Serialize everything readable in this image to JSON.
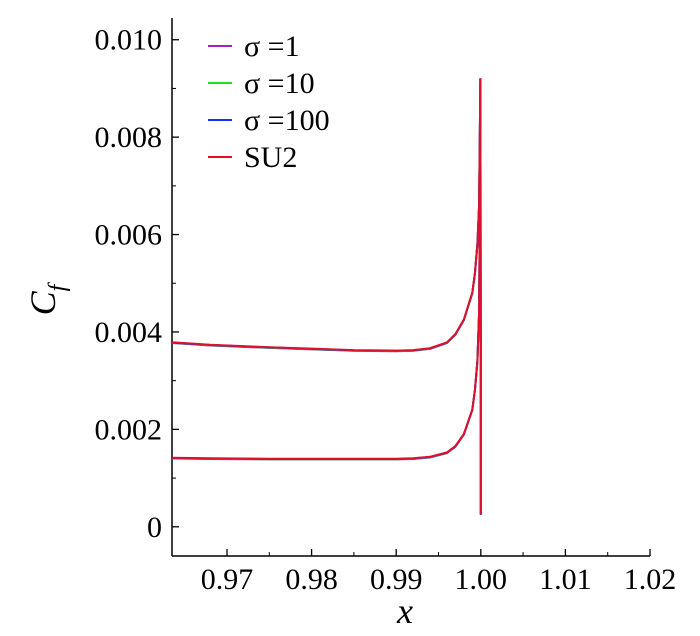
{
  "chart_data": {
    "type": "line",
    "title": "",
    "xlabel": "x",
    "ylabel_main": "C",
    "ylabel_sub": "f",
    "xlim": [
      0.9635,
      1.02
    ],
    "ylim": [
      -0.0006,
      0.0102
    ],
    "x_ticks": [
      0.97,
      0.98,
      0.99,
      1.0,
      1.01,
      1.02
    ],
    "x_tick_labels": [
      "0.97",
      "0.98",
      "0.99",
      "1.00",
      "1.01",
      "1.02"
    ],
    "y_ticks": [
      0,
      0.002,
      0.004,
      0.006,
      0.008,
      0.01
    ],
    "y_tick_labels": [
      "0",
      "0.002",
      "0.004",
      "0.006",
      "0.008",
      "0.010"
    ],
    "grid": false,
    "legend_position": "top-left",
    "series": [
      {
        "name": "σ =1",
        "color": "#a020c0"
      },
      {
        "name": "σ =10",
        "color": "#22dd22"
      },
      {
        "name": "σ =100",
        "color": "#1030ff"
      },
      {
        "name": "SU2",
        "color": "#e0102a"
      }
    ],
    "curves": [
      {
        "label": "upper",
        "x": [
          0.9635,
          0.968,
          0.975,
          0.98,
          0.985,
          0.99,
          0.992,
          0.994,
          0.996,
          0.997,
          0.998,
          0.999,
          0.9993,
          0.9996,
          0.9998,
          0.99995
        ],
        "y": [
          0.00378,
          0.00373,
          0.00368,
          0.00365,
          0.00362,
          0.00361,
          0.00362,
          0.00366,
          0.00378,
          0.00395,
          0.00425,
          0.0048,
          0.0052,
          0.0058,
          0.0066,
          0.0092
        ]
      },
      {
        "label": "lower",
        "x": [
          0.9635,
          0.968,
          0.975,
          0.98,
          0.985,
          0.99,
          0.992,
          0.994,
          0.996,
          0.997,
          0.998,
          0.999,
          0.9993,
          0.9996,
          0.9998,
          0.99995
        ],
        "y": [
          0.00141,
          0.0014,
          0.00139,
          0.00139,
          0.00139,
          0.00139,
          0.0014,
          0.00143,
          0.00152,
          0.00165,
          0.0019,
          0.0024,
          0.0028,
          0.0034,
          0.0044,
          0.0081
        ]
      },
      {
        "label": "trailing-edge",
        "x": [
          0.99995,
          0.99998,
          1.0,
          1.0,
          1.0
        ],
        "y": [
          0.0092,
          0.006,
          0.0038,
          0.0016,
          0.00025
        ]
      }
    ]
  }
}
